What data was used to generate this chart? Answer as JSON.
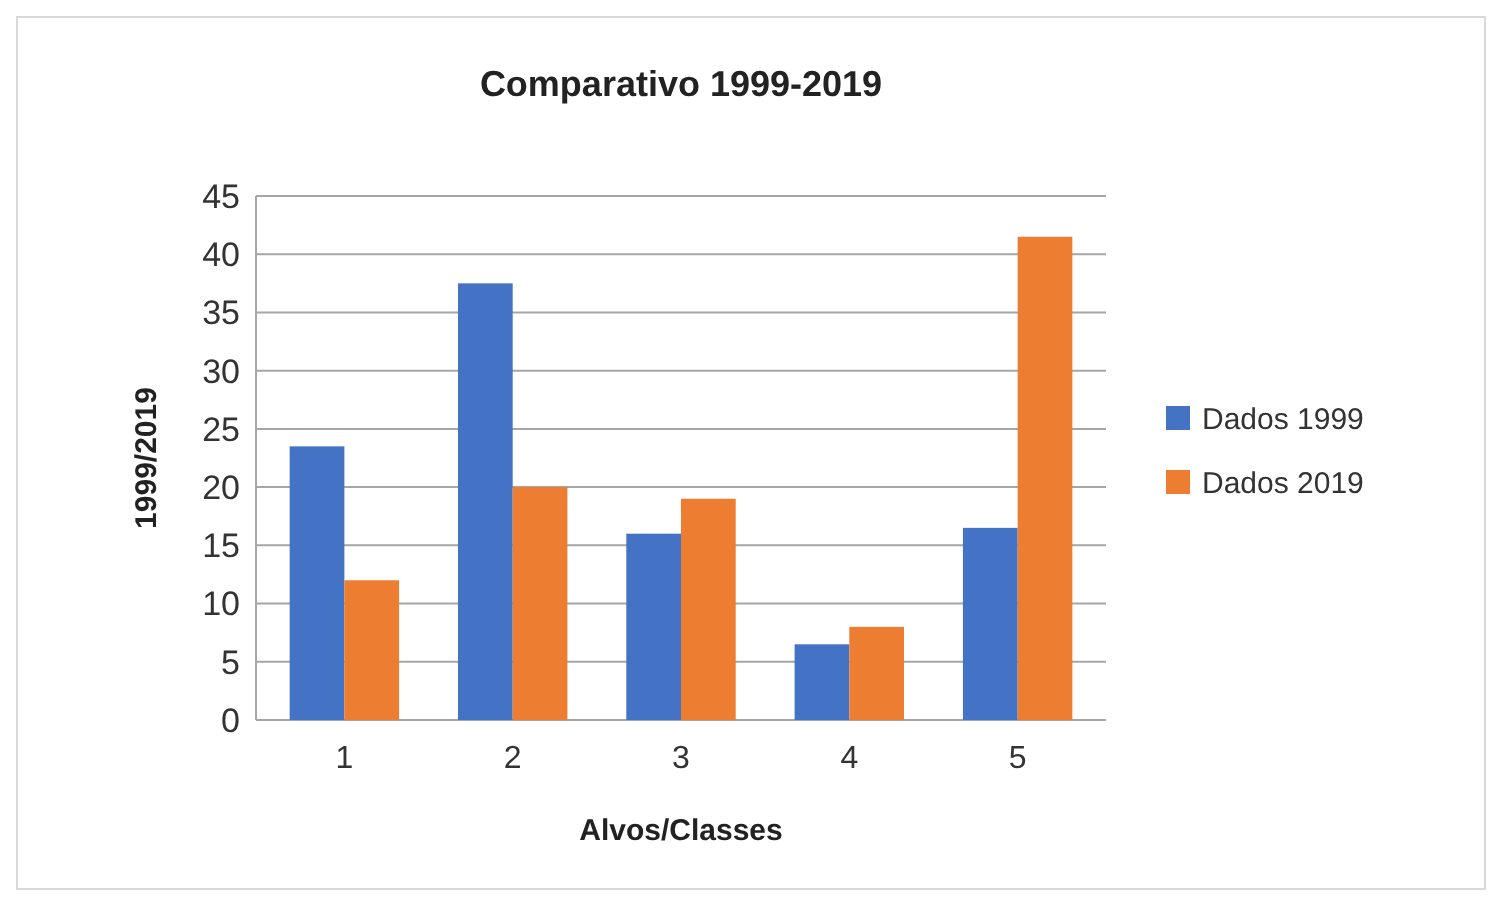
{
  "chart_data": {
    "type": "bar",
    "title": "Comparativo 1999-2019",
    "xlabel": "Alvos/Classes",
    "ylabel": "1999/2019",
    "categories": [
      "1",
      "2",
      "3",
      "4",
      "5"
    ],
    "series": [
      {
        "name": "Dados 1999",
        "color": "#4472c4",
        "values": [
          23.5,
          37.5,
          16,
          6.5,
          16.5
        ]
      },
      {
        "name": "Dados 2019",
        "color": "#ed7d31",
        "values": [
          12,
          20,
          19,
          8,
          41.5
        ]
      }
    ],
    "ylim": [
      0,
      45
    ],
    "yticks": [
      0,
      5,
      10,
      15,
      20,
      25,
      30,
      35,
      40,
      45
    ],
    "grid": "y",
    "legend": "right"
  }
}
